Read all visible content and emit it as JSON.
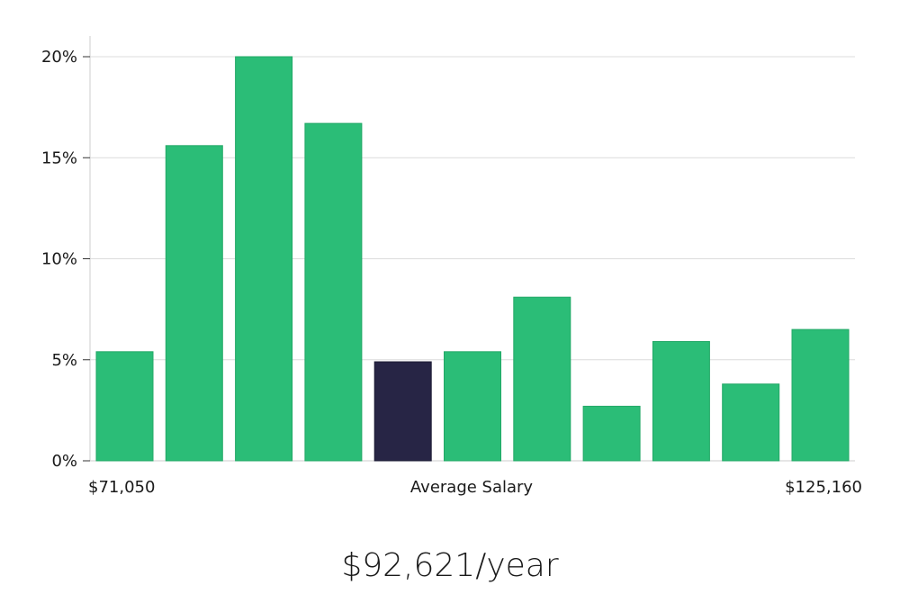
{
  "chart_data": {
    "type": "bar",
    "title": "",
    "xlabel": "Average Salary",
    "ylabel": "",
    "ylim": [
      0,
      20
    ],
    "yticks": [
      0,
      5,
      10,
      15,
      20
    ],
    "ytick_labels": [
      "0%",
      "5%",
      "10%",
      "15%",
      "20%"
    ],
    "x_range_labels": {
      "min": "$71,050",
      "max": "$125,160"
    },
    "values": [
      5.4,
      15.6,
      20.0,
      16.7,
      4.9,
      5.4,
      8.1,
      2.7,
      5.9,
      3.8,
      6.5
    ],
    "highlight_index": 4,
    "colors": {
      "bar": "#2bbd77",
      "highlight": "#272545",
      "grid": "#dcdcdc",
      "axis": "#cccccc"
    },
    "grid": true
  },
  "summary": {
    "salary_text": "$92,621/year"
  }
}
